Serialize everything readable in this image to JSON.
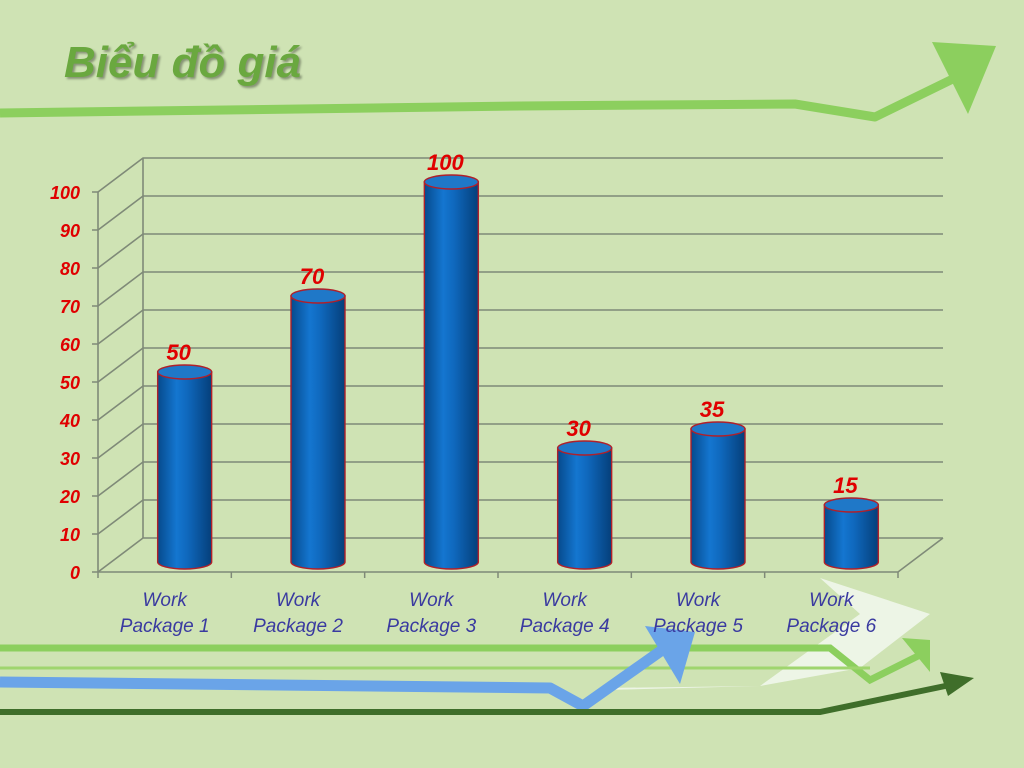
{
  "slide": {
    "title": "Biểu đồ giá"
  },
  "colors": {
    "background": "#cfe3b4",
    "title": "#6aa83f",
    "bar": "#0a63b8",
    "bar_top": "#1f78c8",
    "bar_outline": "#b0202a",
    "value_label": "#e00000",
    "axis_label": "#e00000",
    "category_label": "#3a3aa0",
    "gridline": "#7f8a78",
    "arrow_light_green": "#8ccf5e",
    "arrow_dark_green": "#3f6e2a",
    "arrow_blue": "#6aa4e8",
    "arrow_white": "#f2f8ee"
  },
  "chart_data": {
    "type": "bar",
    "style": "3d-cylinder",
    "categories": [
      "Work Package 1",
      "Work Package 2",
      "Work Package 3",
      "Work Package 4",
      "Work Package 5",
      "Work Package 6"
    ],
    "category_lines": [
      [
        "Work",
        "Package 1"
      ],
      [
        "Work",
        "Package 2"
      ],
      [
        "Work",
        "Package 3"
      ],
      [
        "Work",
        "Package 4"
      ],
      [
        "Work",
        "Package 5"
      ],
      [
        "Work",
        "Package 6"
      ]
    ],
    "values": [
      50,
      70,
      100,
      30,
      35,
      15
    ],
    "data_labels": [
      "50",
      "70",
      "100",
      "30",
      "35",
      "15"
    ],
    "title": "",
    "xlabel": "",
    "ylabel": "",
    "ylim": [
      0,
      100
    ],
    "ytick_step": 10,
    "yticks": [
      "0",
      "10",
      "20",
      "30",
      "40",
      "50",
      "60",
      "70",
      "80",
      "90",
      "100"
    ],
    "grid": true,
    "legend": "none"
  }
}
